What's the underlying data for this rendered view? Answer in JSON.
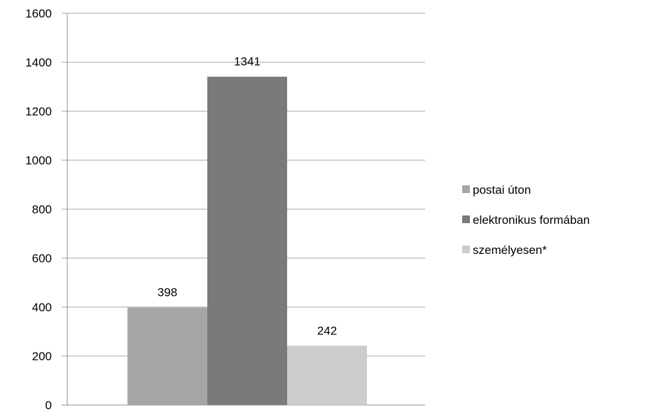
{
  "chart_data": {
    "type": "bar",
    "title": "",
    "xlabel": "",
    "ylabel": "",
    "ylim": [
      0,
      1600
    ],
    "yticks": [
      0,
      200,
      400,
      600,
      800,
      1000,
      1200,
      1400,
      1600
    ],
    "grid": true,
    "legend_position": "right",
    "series": [
      {
        "name": "postai úton",
        "values": [
          398
        ],
        "color": "#a6a6a6"
      },
      {
        "name": "elektronikus formában",
        "values": [
          1341
        ],
        "color": "#7a7a7a"
      },
      {
        "name": "személyesen*",
        "values": [
          242
        ],
        "color": "#cccccc"
      }
    ]
  }
}
